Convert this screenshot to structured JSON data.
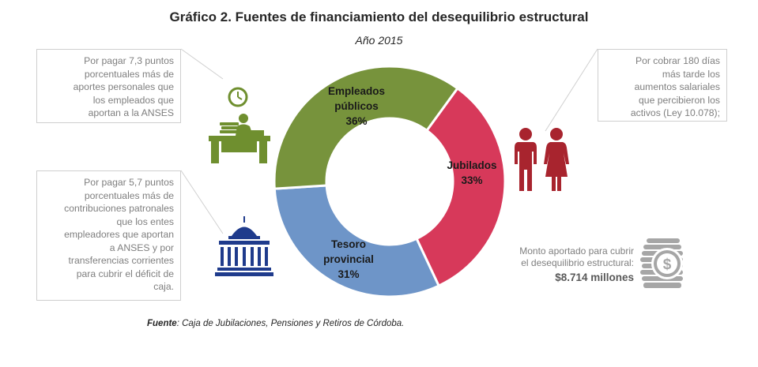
{
  "title": "Gráfico 2. Fuentes de financiamiento del desequilibrio estructural",
  "subtitle": "Año 2015",
  "chart_data": {
    "type": "pie",
    "variant": "donut",
    "title": "Gráfico 2. Fuentes de financiamiento del desequilibrio estructural",
    "subtitle": "Año 2015",
    "slices": [
      {
        "label_lines": [
          "Empleados",
          "públicos"
        ],
        "label": "Empleados públicos",
        "value": 36,
        "value_label": "36%",
        "color": "#77933c"
      },
      {
        "label_lines": [
          "Jubilados"
        ],
        "label": "Jubilados",
        "value": 33,
        "value_label": "33%",
        "color": "#d7395a"
      },
      {
        "label_lines": [
          "Tesoro",
          "provincial"
        ],
        "label": "Tesoro provincial",
        "value": 31,
        "value_label": "31%",
        "color": "#6e95c8"
      }
    ],
    "start_angle_deg": 36,
    "order": [
      "Jubilados",
      "Tesoro provincial",
      "Empleados públicos"
    ]
  },
  "notes": {
    "left_top": [
      "Por pagar 7,3 puntos",
      "porcentuales más de",
      "aportes personales que",
      "los empleados que",
      "aportan a la ANSES"
    ],
    "left_bottom": [
      "Por pagar 5,7 puntos",
      "porcentuales más de",
      "contribuciones patronales",
      "que los entes",
      "empleadores que aportan",
      "a ANSES y por",
      "transferencias corrientes",
      "para cubrir el déficit de",
      "caja."
    ],
    "right_top": [
      "Por cobrar 180 días",
      "más tarde los",
      "aumentos salariales",
      "que percibieron los",
      "activos (Ley 10.078);"
    ]
  },
  "monto": {
    "label_lines": [
      "Monto aportado para cubrir",
      "el desequilibrio estructural:"
    ],
    "value": "$8.714 millones"
  },
  "source": {
    "prefix": "Fuente",
    "text": ": Caja de Jubilaciones, Pensiones y Retiros de Córdoba."
  },
  "icons": {
    "left_top": "office-worker-desk-icon",
    "left_bottom": "government-building-icon",
    "right_top": "retired-couple-icon",
    "monto": "coins-stack-icon"
  },
  "colors": {
    "green": "#77933c",
    "red": "#d7395a",
    "blue": "#6e95c8",
    "icon_green": "#6f8f2f",
    "icon_red": "#a8242e",
    "icon_blue": "#1f3b8c",
    "icon_gray": "#a6a6a6"
  }
}
